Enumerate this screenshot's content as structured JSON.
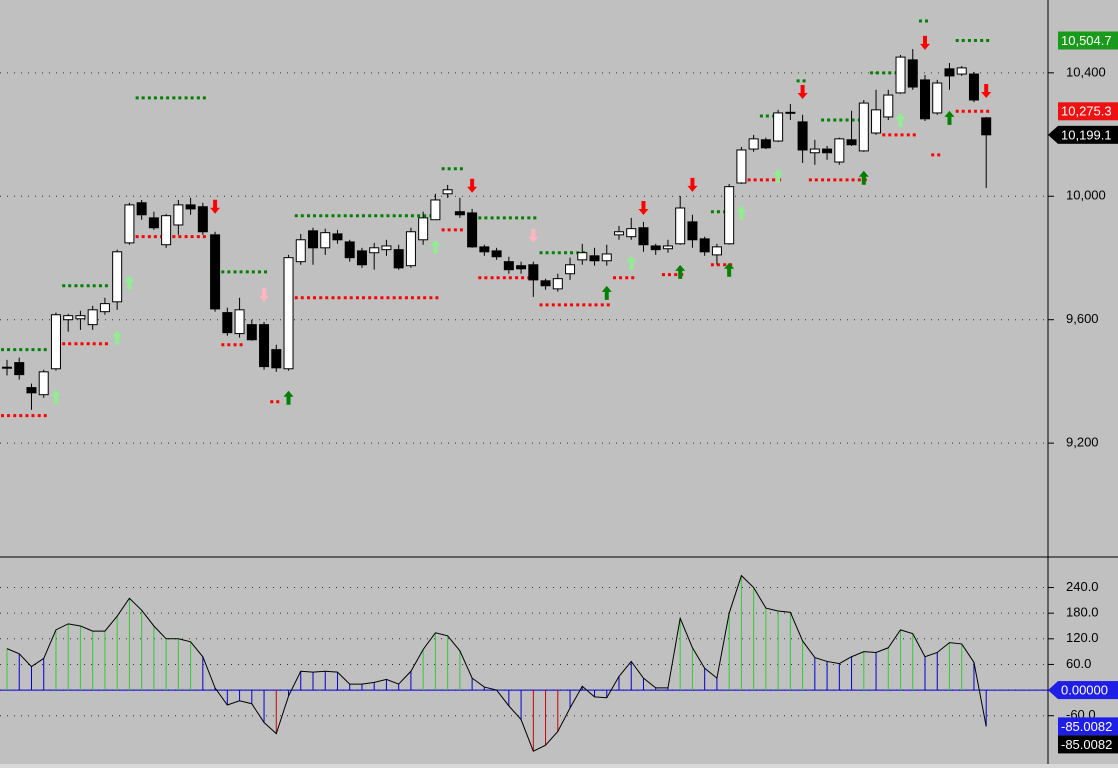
{
  "chart_data": [
    {
      "type": "candlestick",
      "open": [
        9444,
        9461,
        9380,
        9357,
        9441,
        9600,
        9603,
        9584,
        9626,
        9658,
        9849,
        9979,
        9930,
        9843,
        9907,
        9972,
        9966,
        9875,
        9623,
        9555,
        9584,
        9584,
        9503,
        9441,
        9788,
        9888,
        9833,
        9878,
        9852,
        9823,
        9817,
        9827,
        9827,
        9775,
        9859,
        9924,
        10008,
        9950,
        9946,
        9836,
        9823,
        9788,
        9775,
        9778,
        9726,
        9700,
        9749,
        9794,
        9807,
        9791,
        9875,
        9869,
        9898,
        9839,
        9830,
        9846,
        9917,
        9862,
        9810,
        9846,
        10043,
        10153,
        10183,
        10179,
        10270,
        10241,
        10141,
        10153,
        10111,
        10183,
        10147,
        10205,
        10257,
        10335,
        10442,
        10377,
        10270,
        10413,
        10396,
        10396,
        10254
      ],
      "high": [
        9470,
        9477,
        9393,
        9438,
        9623,
        9619,
        9629,
        9645,
        9671,
        9827,
        9979,
        9988,
        9950,
        9943,
        9988,
        9995,
        9979,
        9885,
        9639,
        9671,
        9600,
        9593,
        9519,
        9810,
        9878,
        9898,
        9895,
        9891,
        9859,
        9833,
        9849,
        9859,
        9843,
        9898,
        9950,
        10008,
        10037,
        9995,
        9959,
        9843,
        9833,
        9804,
        9788,
        9788,
        9733,
        9749,
        9801,
        9846,
        9833,
        9843,
        9904,
        9930,
        9917,
        9846,
        9859,
        10001,
        9940,
        9869,
        9846,
        10040,
        10160,
        10199,
        10190,
        10280,
        10299,
        10264,
        10183,
        10163,
        10190,
        10277,
        10312,
        10345,
        10345,
        10458,
        10477,
        10393,
        10377,
        10432,
        10422,
        10403,
        10257
      ],
      "low": [
        9419,
        9406,
        9308,
        9347,
        9435,
        9561,
        9567,
        9567,
        9616,
        9632,
        9843,
        9924,
        9891,
        9833,
        9875,
        9940,
        9875,
        9626,
        9548,
        9542,
        9532,
        9438,
        9431,
        9435,
        9778,
        9778,
        9810,
        9846,
        9788,
        9768,
        9762,
        9807,
        9762,
        9768,
        9843,
        9924,
        9995,
        9930,
        9833,
        9807,
        9794,
        9749,
        9749,
        9674,
        9697,
        9691,
        9729,
        9778,
        9775,
        9775,
        9859,
        9859,
        9820,
        9810,
        9817,
        9843,
        9833,
        9807,
        9778,
        9843,
        10040,
        10144,
        10153,
        10176,
        10247,
        10108,
        10102,
        10118,
        10102,
        10163,
        10144,
        10199,
        10247,
        10332,
        10345,
        10244,
        10264,
        10345,
        10390,
        10305,
        10027
      ],
      "close": [
        9446,
        9422,
        9363,
        9431,
        9616,
        9613,
        9613,
        9632,
        9652,
        9820,
        9972,
        9940,
        9898,
        9937,
        9972,
        9959,
        9885,
        9635,
        9558,
        9632,
        9535,
        9448,
        9444,
        9801,
        9859,
        9833,
        9882,
        9859,
        9801,
        9778,
        9833,
        9839,
        9768,
        9885,
        9930,
        9988,
        10021,
        9940,
        9836,
        9820,
        9804,
        9762,
        9765,
        9729,
        9710,
        9733,
        9778,
        9817,
        9791,
        9813,
        9885,
        9895,
        9843,
        9827,
        9839,
        9962,
        9859,
        9820,
        9836,
        10031,
        10150,
        10186,
        10157,
        10270,
        10272,
        10150,
        10153,
        10141,
        10186,
        10167,
        10302,
        10280,
        10328,
        10451,
        10354,
        10251,
        10367,
        10390,
        10416,
        10312,
        10199.1
      ],
      "close_label": "10,199.1",
      "ylim": [
        8831,
        10636
      ],
      "yticks": [
        {
          "value": 10400,
          "label": "10,400"
        },
        {
          "value": 10000,
          "label": "10,000"
        },
        {
          "value": 9600,
          "label": "9,600"
        },
        {
          "value": 9200,
          "label": "9,200"
        }
      ],
      "grid": true,
      "stops": [
        {
          "color": "#008000",
          "last_label": "10,504.7",
          "x": [
            0,
            1,
            2,
            3,
            5,
            6,
            7,
            8,
            11,
            12,
            13,
            14,
            15,
            16,
            18,
            19,
            20,
            21,
            24,
            25,
            26,
            27,
            28,
            29,
            30,
            31,
            32,
            33,
            34,
            35,
            36,
            37,
            39,
            40,
            41,
            42,
            43,
            44,
            45,
            46,
            47,
            58,
            59,
            62,
            63,
            65,
            67,
            68,
            69,
            70,
            71,
            72,
            73,
            75,
            78,
            79,
            80
          ],
          "values": [
            9503,
            9503,
            9503,
            9503,
            9710,
            9710,
            9710,
            9710,
            10319,
            10319,
            10319,
            10319,
            10319,
            10319,
            9755,
            9755,
            9755,
            9755,
            9937,
            9937,
            9937,
            9937,
            9937,
            9937,
            9937,
            9937,
            9937,
            9937,
            9937,
            9937,
            10089,
            10089,
            9930,
            9930,
            9930,
            9930,
            9930,
            9817,
            9817,
            9817,
            9817,
            9950,
            9950,
            10260,
            10260,
            10374,
            10247,
            10247,
            10247,
            10247,
            10400,
            10400,
            10400,
            10568,
            10504.7,
            10504.7,
            10504.7
          ]
        },
        {
          "color": "#ff0000",
          "last_label": "10,275.3",
          "x": [
            0,
            1,
            2,
            3,
            5,
            6,
            7,
            8,
            11,
            12,
            13,
            14,
            15,
            16,
            18,
            19,
            22,
            24,
            25,
            26,
            27,
            28,
            29,
            30,
            31,
            32,
            33,
            34,
            35,
            36,
            37,
            39,
            40,
            41,
            42,
            43,
            44,
            45,
            46,
            47,
            48,
            49,
            50,
            51,
            54,
            55,
            58,
            59,
            61,
            62,
            63,
            66,
            67,
            68,
            69,
            70,
            72,
            73,
            74,
            76,
            78,
            79,
            80
          ],
          "values": [
            9289,
            9289,
            9289,
            9289,
            9522,
            9522,
            9522,
            9522,
            9869,
            9869,
            9869,
            9869,
            9869,
            9869,
            9519,
            9519,
            9334,
            9671,
            9671,
            9671,
            9671,
            9671,
            9671,
            9671,
            9671,
            9671,
            9671,
            9671,
            9671,
            9891,
            9891,
            9736,
            9736,
            9736,
            9736,
            9736,
            9648,
            9648,
            9648,
            9648,
            9648,
            9648,
            9736,
            9736,
            9746,
            9746,
            9778,
            9778,
            10053,
            10053,
            10053,
            10053,
            10053,
            10053,
            10053,
            10053,
            10199,
            10199,
            10199,
            10134,
            10275.3,
            10275.3,
            10275.3
          ]
        }
      ],
      "signals": [
        {
          "color": "#008000",
          "direction": "up",
          "x": [
            23,
            49,
            55,
            59,
            70,
            77
          ],
          "values": [
            9347,
            9687,
            9755,
            9762,
            10060,
            10254
          ]
        },
        {
          "color": "#90ee90",
          "direction": "up",
          "x": [
            4,
            9,
            10,
            35,
            51,
            60,
            63,
            73
          ],
          "values": [
            9350,
            9542,
            9720,
            9836,
            9784,
            9946,
            10066,
            10247
          ]
        },
        {
          "color": "#ff0000",
          "direction": "down",
          "x": [
            17,
            38,
            52,
            56,
            65,
            75,
            80
          ],
          "values": [
            9966,
            10034,
            9962,
            10037,
            10338,
            10497,
            10341
          ]
        },
        {
          "color": "#ffb6c1",
          "direction": "down",
          "x": [
            21,
            43
          ],
          "values": [
            9681,
            9872
          ]
        }
      ]
    },
    {
      "type": "oscillator",
      "values": [
        97,
        85,
        55,
        74,
        141,
        155,
        150,
        138,
        138,
        173,
        215,
        187,
        150,
        120,
        120,
        113,
        78,
        5,
        -35,
        -25,
        -32,
        -76,
        -102,
        -14,
        44,
        42,
        44,
        42,
        14,
        14,
        18,
        25,
        14,
        44,
        95,
        134,
        127,
        92,
        28,
        7,
        0,
        -37,
        -69,
        -143,
        -129,
        -97,
        -42,
        9,
        -16,
        -18,
        32,
        67,
        28,
        5,
        5,
        168,
        99,
        51,
        28,
        180,
        268,
        240,
        192,
        185,
        182,
        115,
        76,
        67,
        62,
        78,
        90,
        88,
        99,
        141,
        132,
        78,
        88,
        111,
        108,
        65,
        -85.0082
      ],
      "bar_colors": [
        "#33cc33",
        "#0000cc",
        "#0000cc",
        "#0000cc",
        "#33cc33",
        "#33cc33",
        "#33cc33",
        "#33cc33",
        "#33cc33",
        "#33cc33",
        "#33cc33",
        "#33cc33",
        "#33cc33",
        "#33cc33",
        "#33cc33",
        "#33cc33",
        "#0000cc",
        "#0000cc",
        "#0000cc",
        "#0000cc",
        "#0000cc",
        "#0000cc",
        "#cc0000",
        "#0000cc",
        "#0000cc",
        "#0000cc",
        "#0000cc",
        "#0000cc",
        "#0000cc",
        "#0000cc",
        "#0000cc",
        "#0000cc",
        "#0000cc",
        "#0000cc",
        "#33cc33",
        "#33cc33",
        "#33cc33",
        "#33cc33",
        "#0000cc",
        "#0000cc",
        "#0000cc",
        "#0000cc",
        "#0000cc",
        "#cc0000",
        "#cc0000",
        "#cc0000",
        "#0000cc",
        "#0000cc",
        "#0000cc",
        "#0000cc",
        "#0000cc",
        "#0000cc",
        "#0000cc",
        "#0000cc",
        "#0000cc",
        "#33cc33",
        "#33cc33",
        "#0000cc",
        "#0000cc",
        "#33cc33",
        "#33cc33",
        "#33cc33",
        "#33cc33",
        "#33cc33",
        "#33cc33",
        "#33cc33",
        "#0000cc",
        "#0000cc",
        "#0000cc",
        "#0000cc",
        "#33cc33",
        "#0000cc",
        "#33cc33",
        "#33cc33",
        "#33cc33",
        "#0000cc",
        "#0000cc",
        "#33cc33",
        "#33cc33",
        "#0000cc",
        "#0000cc"
      ],
      "line_color": "#000000",
      "ylim": [
        -175.4,
        311.5
      ],
      "yticks": [
        {
          "value": 240,
          "label": "240.0"
        },
        {
          "value": 180,
          "label": "180.0"
        },
        {
          "value": 120,
          "label": "120.0"
        },
        {
          "value": 60,
          "label": "60.0"
        },
        {
          "value": 0,
          "label": "0.00000"
        },
        {
          "value": -60,
          "label": "-60.0"
        }
      ],
      "grid": true,
      "last_labels": [
        "-85.0082",
        "-85.0082"
      ]
    }
  ]
}
